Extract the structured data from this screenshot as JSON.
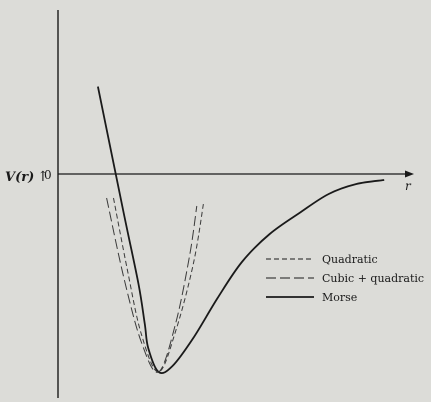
{
  "chart_data": {
    "type": "line",
    "title": "",
    "ylabel": "V(r)",
    "xlabel": "r",
    "y_zero_tick": "0",
    "xlim": [
      0,
      10
    ],
    "ylim": [
      -1.0,
      0.5
    ],
    "grid": false,
    "legend_position": "center-right",
    "series": [
      {
        "name": "Morse",
        "style": "solid",
        "x": [
          1.15,
          1.9,
          2.32,
          2.5,
          2.6,
          2.9,
          3.3,
          3.9,
          4.6,
          5.3,
          6.1,
          7.0,
          7.8,
          8.6,
          9.4
        ],
        "y": [
          0.42,
          -0.2,
          -0.55,
          -0.75,
          -0.87,
          -0.99,
          -0.96,
          -0.82,
          -0.62,
          -0.44,
          -0.3,
          -0.19,
          -0.1,
          -0.05,
          -0.03
        ]
      },
      {
        "name": "Quadratic",
        "style": "dashed-short",
        "x": [
          1.6,
          2.0,
          2.4,
          2.9,
          3.4,
          3.9,
          4.2
        ],
        "y": [
          -0.12,
          -0.48,
          -0.8,
          -0.99,
          -0.78,
          -0.45,
          -0.14
        ]
      },
      {
        "name": "Cubic + quadratic",
        "style": "dashed-long",
        "x": [
          1.4,
          1.9,
          2.4,
          2.9,
          3.4,
          3.8,
          4.0
        ],
        "y": [
          -0.12,
          -0.52,
          -0.84,
          -0.99,
          -0.74,
          -0.4,
          -0.16
        ]
      }
    ]
  },
  "colors": {
    "background": "#dcdcd8",
    "ink": "#1a1a1a"
  }
}
